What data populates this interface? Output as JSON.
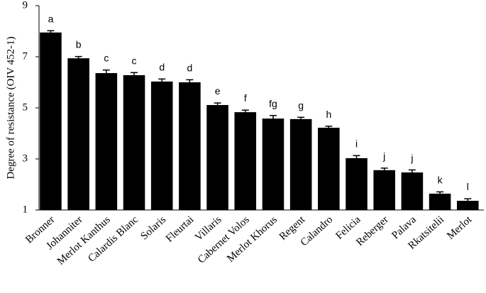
{
  "chart_data": {
    "type": "bar",
    "y_label": "Degree of resistance (OIV 452-1)",
    "categories": [
      "Bronner",
      "Johanniter",
      "Merlot Kanthus",
      "Calardis Blanc",
      "Solaris",
      "Fleurtai",
      "Villaris",
      "Cabernet Volos",
      "Merlot Khorus",
      "Regent",
      "Calandro",
      "Felicia",
      "Reberger",
      "Palava",
      "Rkatsitelii",
      "Merlot"
    ],
    "values": [
      7.95,
      6.94,
      6.36,
      6.28,
      6.03,
      6.0,
      5.11,
      4.83,
      4.58,
      4.56,
      4.22,
      3.03,
      2.56,
      2.47,
      1.64,
      1.36
    ],
    "errors": [
      0.07,
      0.07,
      0.12,
      0.1,
      0.1,
      0.1,
      0.08,
      0.08,
      0.12,
      0.07,
      0.06,
      0.1,
      0.08,
      0.1,
      0.07,
      0.08
    ],
    "annotations": [
      "a",
      "b",
      "c",
      "c",
      "d",
      "d",
      "e",
      "f",
      "fg",
      "g",
      "h",
      "i",
      "j",
      "j",
      "k",
      "l"
    ],
    "color": "#000000",
    "ylim": [
      1,
      9
    ],
    "yticks": [
      1,
      3,
      5,
      7,
      9
    ]
  }
}
